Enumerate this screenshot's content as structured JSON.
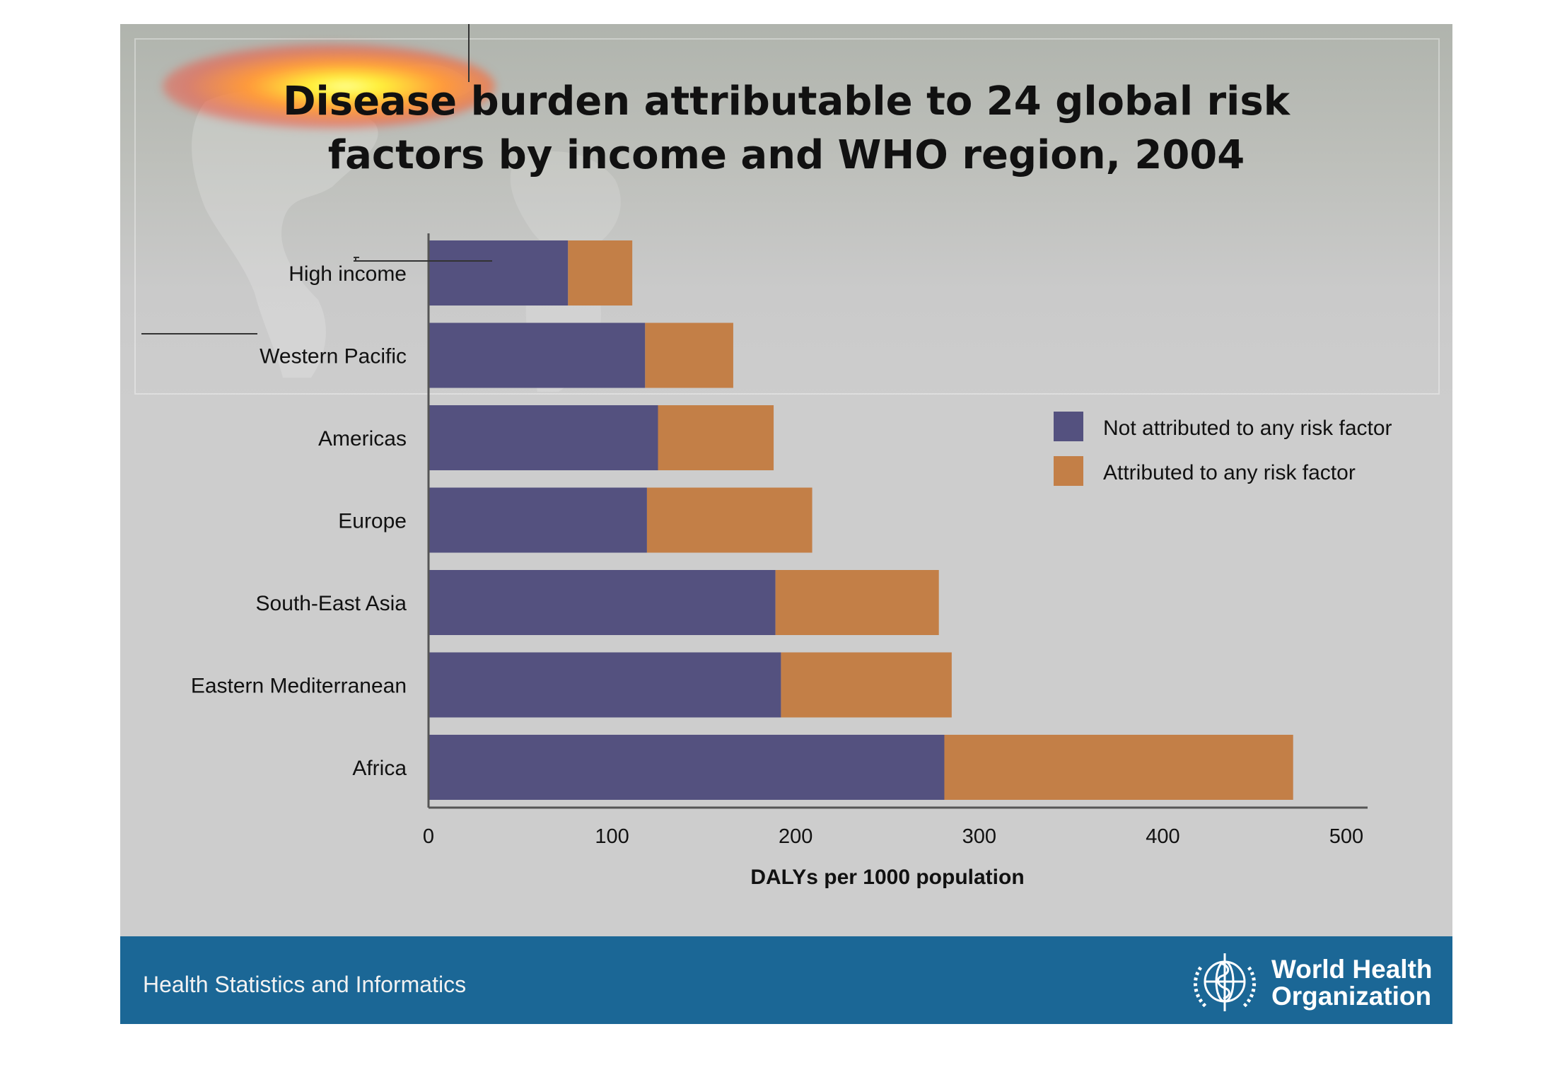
{
  "slide": {
    "title_line1": "Disease burden attributable to 24 global risk",
    "title_line2": "factors by income and WHO region, 2004"
  },
  "footer": {
    "text": "Health Statistics and Informatics",
    "org_line1": "World Health",
    "org_line2": "Organization",
    "color": "#1b6796"
  },
  "chart_data": {
    "type": "bar",
    "orientation": "horizontal",
    "stacked": true,
    "categories": [
      "High income",
      "Western Pacific",
      "Americas",
      "Europe",
      "South-East Asia",
      "Eastern Mediterranean",
      "Africa"
    ],
    "series": [
      {
        "name": "Not attributed to any risk factor",
        "color": "#54517f",
        "values": [
          76,
          118,
          125,
          119,
          189,
          192,
          281
        ]
      },
      {
        "name": "Attributed to any risk factor",
        "color": "#c37f47",
        "values": [
          35,
          48,
          63,
          90,
          89,
          93,
          190
        ]
      }
    ],
    "xlabel": "DALYs per 1000 population",
    "xlim": [
      0,
      500
    ],
    "xticks": [
      0,
      100,
      200,
      300,
      400,
      500
    ],
    "legend_position": "right",
    "grid": false
  }
}
